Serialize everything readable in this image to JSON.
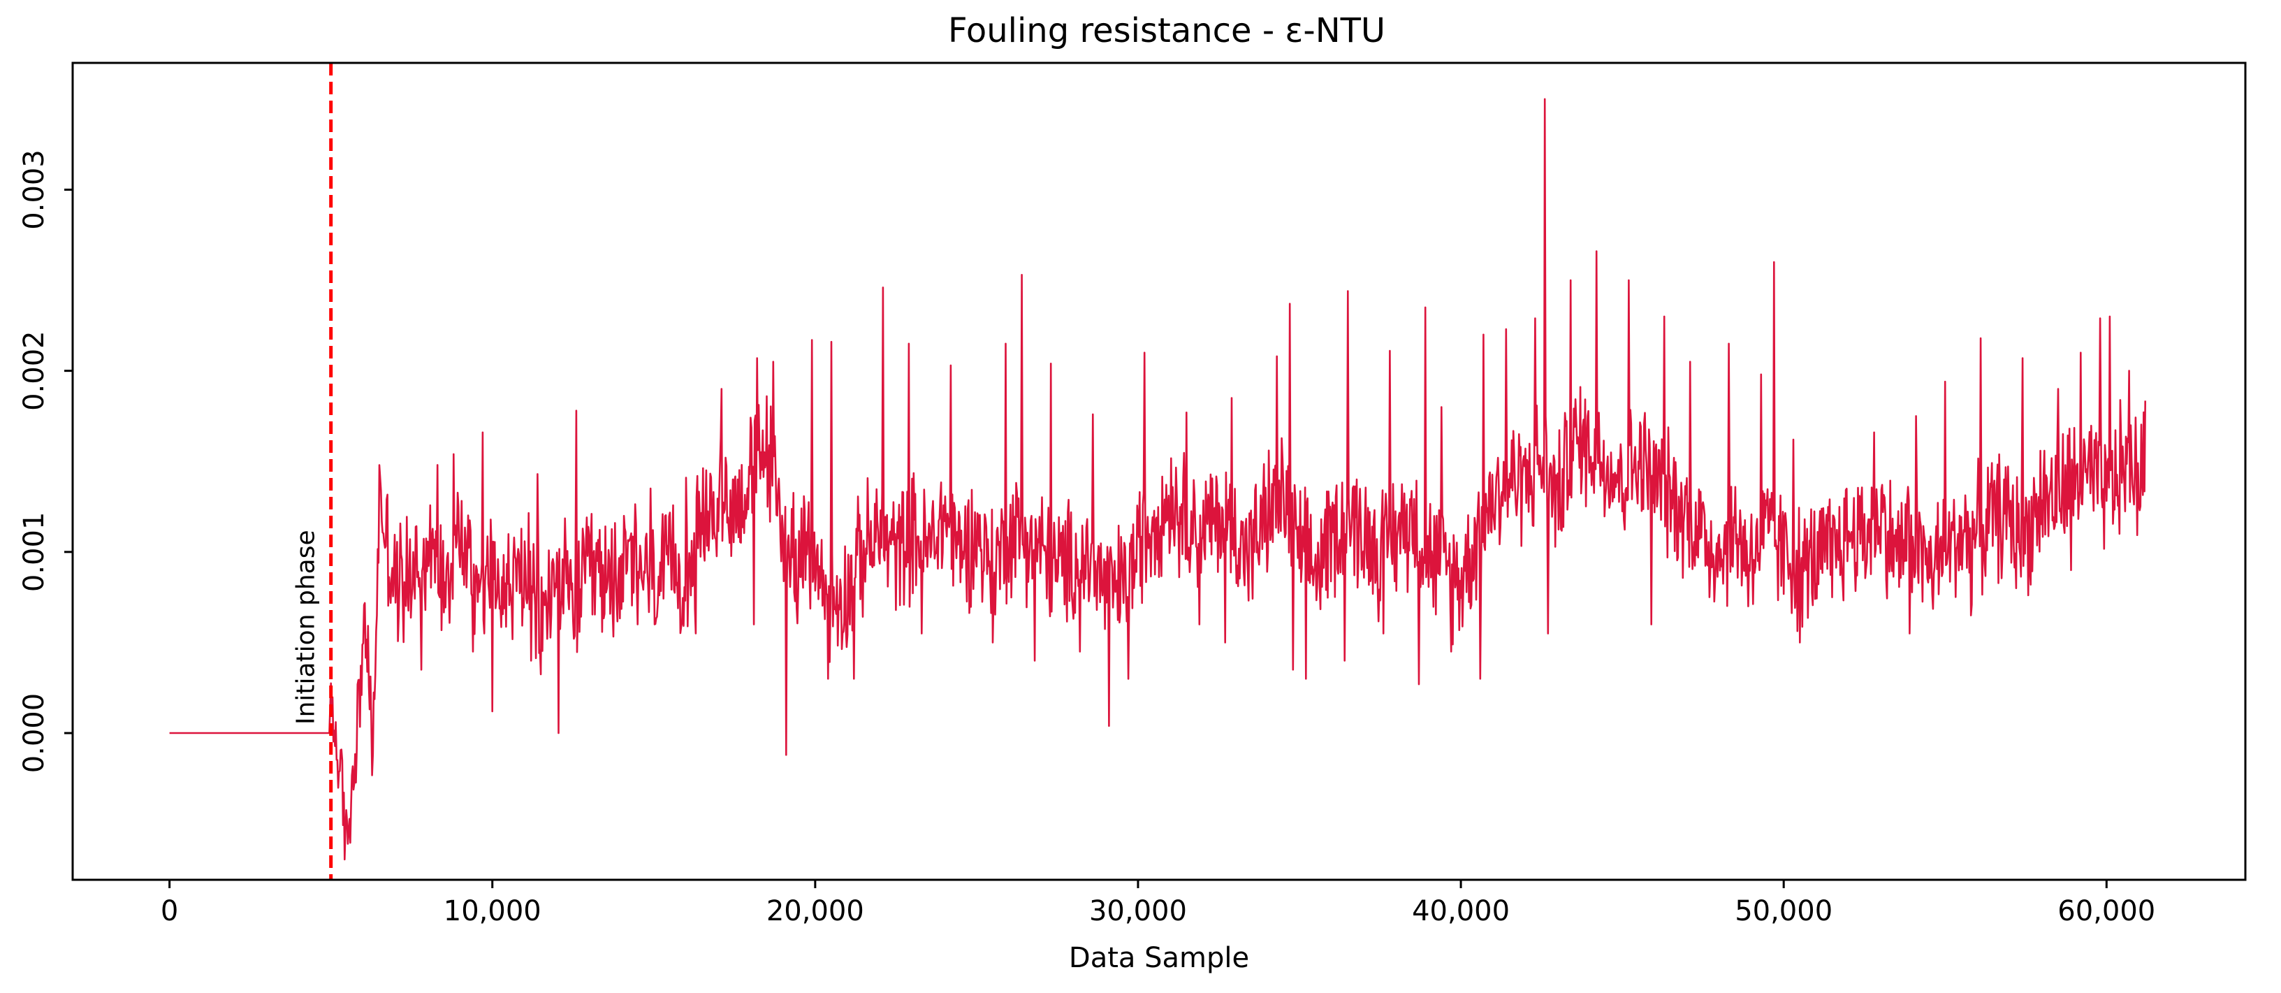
{
  "chart_data": {
    "type": "line",
    "title": "Fouling resistance - ε-NTU",
    "xlabel": "Data Sample",
    "ylabel": "",
    "xlim": [
      -3000,
      64300
    ],
    "ylim": [
      -0.00081,
      0.0037
    ],
    "xticks": [
      0,
      10000,
      20000,
      30000,
      40000,
      50000,
      60000
    ],
    "xtick_labels": [
      "0",
      "10,000",
      "20,000",
      "30,000",
      "40,000",
      "50,000",
      "60,000"
    ],
    "yticks": [
      0.0,
      0.001,
      0.002,
      0.003
    ],
    "ytick_labels": [
      "0.000",
      "0.001",
      "0.002",
      "0.003"
    ],
    "grid": false,
    "legend": "none",
    "annotations": [
      {
        "text": "Initiation phase",
        "x": 5000,
        "y": 0.0,
        "rotation": -90
      }
    ],
    "vline": {
      "x": 5000,
      "color": "#ff0000",
      "style": "dashed"
    },
    "series": [
      {
        "color": "#dc143c",
        "points": [
          [
            0,
            0.0
          ],
          [
            4950,
            0.0
          ],
          [
            5050,
            0.00015
          ],
          [
            5300,
            -0.0003
          ],
          [
            5500,
            -0.00058
          ],
          [
            5700,
            -0.0002
          ],
          [
            5900,
            0.0003
          ],
          [
            6100,
            0.0006
          ],
          [
            6300,
            -0.00018
          ],
          [
            6500,
            0.0013
          ],
          [
            7000,
            0.0008
          ],
          [
            7500,
            0.0009
          ],
          [
            8000,
            0.001
          ],
          [
            8500,
            0.0009
          ],
          [
            9000,
            0.0011
          ],
          [
            9500,
            0.00085
          ],
          [
            10000,
            0.0009
          ],
          [
            10500,
            0.0008
          ],
          [
            11000,
            0.0009
          ],
          [
            11500,
            0.0006
          ],
          [
            12000,
            0.0009
          ],
          [
            12500,
            0.0007
          ],
          [
            13000,
            0.0009
          ],
          [
            13500,
            0.00085
          ],
          [
            14000,
            0.0009
          ],
          [
            14500,
            0.00095
          ],
          [
            15000,
            0.0008
          ],
          [
            15500,
            0.0009
          ],
          [
            16000,
            0.0009
          ],
          [
            16500,
            0.0011
          ],
          [
            17000,
            0.0013
          ],
          [
            17500,
            0.00125
          ],
          [
            18000,
            0.0014
          ],
          [
            18500,
            0.0016
          ],
          [
            19000,
            0.0011
          ],
          [
            19500,
            0.00095
          ],
          [
            20000,
            0.00095
          ],
          [
            20500,
            0.0007
          ],
          [
            21000,
            0.0008
          ],
          [
            21500,
            0.001
          ],
          [
            22000,
            0.0011
          ],
          [
            22500,
            0.001
          ],
          [
            23000,
            0.0011
          ],
          [
            23500,
            0.001
          ],
          [
            24000,
            0.0012
          ],
          [
            24500,
            0.001
          ],
          [
            25000,
            0.0011
          ],
          [
            25500,
            0.0009
          ],
          [
            26000,
            0.0011
          ],
          [
            26500,
            0.0011
          ],
          [
            27000,
            0.001
          ],
          [
            27500,
            0.0009
          ],
          [
            28000,
            0.00095
          ],
          [
            28500,
            0.00095
          ],
          [
            29000,
            0.0008
          ],
          [
            29500,
            0.0008
          ],
          [
            30000,
            0.001
          ],
          [
            30500,
            0.0012
          ],
          [
            31000,
            0.0013
          ],
          [
            31500,
            0.0012
          ],
          [
            32000,
            0.0011
          ],
          [
            32500,
            0.0012
          ],
          [
            33000,
            0.0011
          ],
          [
            33500,
            0.001
          ],
          [
            34000,
            0.0012
          ],
          [
            34500,
            0.0013
          ],
          [
            35000,
            0.001
          ],
          [
            35500,
            0.0009
          ],
          [
            36000,
            0.0011
          ],
          [
            36500,
            0.0012
          ],
          [
            37000,
            0.0011
          ],
          [
            37500,
            0.001
          ],
          [
            38000,
            0.0011
          ],
          [
            38500,
            0.0012
          ],
          [
            39000,
            0.001
          ],
          [
            39500,
            0.0009
          ],
          [
            40000,
            0.00085
          ],
          [
            40500,
            0.0011
          ],
          [
            41000,
            0.0013
          ],
          [
            41500,
            0.0014
          ],
          [
            42000,
            0.0014
          ],
          [
            42500,
            0.0015
          ],
          [
            43000,
            0.0013
          ],
          [
            43500,
            0.0016
          ],
          [
            44000,
            0.0016
          ],
          [
            44500,
            0.0015
          ],
          [
            45000,
            0.0014
          ],
          [
            45500,
            0.0015
          ],
          [
            46000,
            0.0014
          ],
          [
            46500,
            0.0013
          ],
          [
            47000,
            0.0012
          ],
          [
            47500,
            0.0011
          ],
          [
            48000,
            0.001
          ],
          [
            48500,
            0.0011
          ],
          [
            49000,
            0.001
          ],
          [
            49500,
            0.0011
          ],
          [
            50000,
            0.001
          ],
          [
            50500,
            0.0009
          ],
          [
            51000,
            0.00095
          ],
          [
            51500,
            0.001
          ],
          [
            52000,
            0.0011
          ],
          [
            52500,
            0.0011
          ],
          [
            53000,
            0.0012
          ],
          [
            53500,
            0.001
          ],
          [
            54000,
            0.0011
          ],
          [
            54500,
            0.0009
          ],
          [
            55000,
            0.001
          ],
          [
            55500,
            0.0011
          ],
          [
            56000,
            0.0011
          ],
          [
            56500,
            0.0012
          ],
          [
            57000,
            0.0012
          ],
          [
            57500,
            0.0011
          ],
          [
            58000,
            0.0013
          ],
          [
            58500,
            0.0013
          ],
          [
            59000,
            0.0014
          ],
          [
            59500,
            0.0014
          ],
          [
            60000,
            0.0013
          ],
          [
            60500,
            0.0015
          ],
          [
            61000,
            0.0014
          ],
          [
            61200,
            0.0015
          ]
        ],
        "spikes": [
          [
            6550,
            0.00134
          ],
          [
            8300,
            0.00148
          ],
          [
            8800,
            0.00154
          ],
          [
            9700,
            0.00166
          ],
          [
            10000,
            0.00012
          ],
          [
            11400,
            0.00143
          ],
          [
            12050,
            0.0
          ],
          [
            12600,
            0.00178
          ],
          [
            13800,
            0.00116
          ],
          [
            14900,
            0.00135
          ],
          [
            16000,
            0.00141
          ],
          [
            17100,
            0.0019
          ],
          [
            18200,
            0.00207
          ],
          [
            18700,
            0.00205
          ],
          [
            19100,
            -0.00012
          ],
          [
            19900,
            0.00217
          ],
          [
            20500,
            0.00216
          ],
          [
            22100,
            0.00246
          ],
          [
            22900,
            0.00215
          ],
          [
            24200,
            0.00203
          ],
          [
            25900,
            0.00215
          ],
          [
            26400,
            0.00253
          ],
          [
            27300,
            0.00204
          ],
          [
            28600,
            0.00176
          ],
          [
            29100,
            4e-05
          ],
          [
            30200,
            0.0021
          ],
          [
            31500,
            0.00177
          ],
          [
            32900,
            0.00185
          ],
          [
            34300,
            0.00208
          ],
          [
            34700,
            0.00237
          ],
          [
            36500,
            0.00244
          ],
          [
            37800,
            0.00211
          ],
          [
            38900,
            0.00235
          ],
          [
            39400,
            0.0018
          ],
          [
            40700,
            0.0022
          ],
          [
            41400,
            0.00223
          ],
          [
            42300,
            0.00229
          ],
          [
            42600,
            0.0035
          ],
          [
            43400,
            0.0025
          ],
          [
            44200,
            0.00266
          ],
          [
            45200,
            0.0025
          ],
          [
            46300,
            0.0023
          ],
          [
            47100,
            0.00205
          ],
          [
            48300,
            0.00215
          ],
          [
            49300,
            0.00198
          ],
          [
            49700,
            0.0026
          ],
          [
            50300,
            0.00162
          ],
          [
            52800,
            0.00166
          ],
          [
            54100,
            0.00175
          ],
          [
            55000,
            0.00194
          ],
          [
            56100,
            0.00218
          ],
          [
            57400,
            0.00207
          ],
          [
            58500,
            0.0019
          ],
          [
            59200,
            0.0021
          ],
          [
            59800,
            0.00229
          ],
          [
            60100,
            0.0023
          ],
          [
            60700,
            0.002
          ]
        ],
        "dips": [
          [
            7800,
            0.00035
          ],
          [
            9400,
            0.00045
          ],
          [
            11200,
            0.0004
          ],
          [
            14500,
            0.0006
          ],
          [
            16300,
            0.00055
          ],
          [
            18100,
            0.0006
          ],
          [
            20400,
            0.0003
          ],
          [
            21200,
            0.0003
          ],
          [
            23300,
            0.00055
          ],
          [
            25500,
            0.0005
          ],
          [
            26800,
            0.0004
          ],
          [
            28200,
            0.00045
          ],
          [
            29700,
            0.0003
          ],
          [
            31900,
            0.0006
          ],
          [
            32700,
            0.0005
          ],
          [
            34800,
            0.00035
          ],
          [
            35200,
            0.0003
          ],
          [
            36400,
            0.0004
          ],
          [
            37600,
            0.00055
          ],
          [
            38700,
            0.00027
          ],
          [
            39700,
            0.00045
          ],
          [
            40600,
            0.0003
          ],
          [
            42700,
            0.00055
          ],
          [
            45900,
            0.0006
          ],
          [
            47700,
            0.00075
          ],
          [
            48900,
            0.0007
          ],
          [
            50500,
            0.0005
          ],
          [
            51500,
            0.00075
          ],
          [
            53900,
            0.00055
          ],
          [
            55800,
            0.00065
          ],
          [
            57200,
            0.0008
          ],
          [
            58900,
            0.0009
          ],
          [
            60400,
            0.0011
          ]
        ]
      }
    ]
  }
}
